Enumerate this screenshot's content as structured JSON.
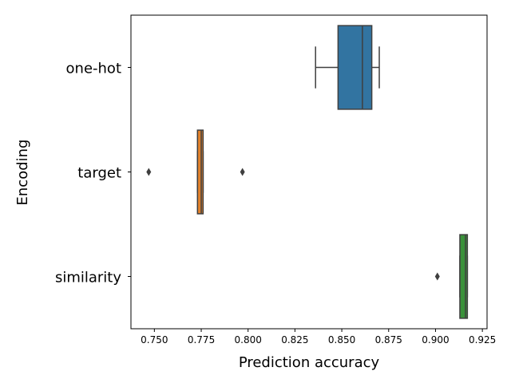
{
  "chart_data": {
    "type": "box",
    "orientation": "horizontal",
    "xlabel": "Prediction accuracy",
    "ylabel": "Encoding",
    "xlim": [
      0.7375,
      0.9275
    ],
    "xticks": [
      0.75,
      0.775,
      0.8,
      0.825,
      0.85,
      0.875,
      0.9,
      0.925
    ],
    "xtick_labels": [
      "0.750",
      "0.775",
      "0.800",
      "0.825",
      "0.850",
      "0.875",
      "0.900",
      "0.925"
    ],
    "grid": false,
    "categories": [
      "one-hot",
      "target",
      "similarity"
    ],
    "series": [
      {
        "category": "one-hot",
        "color": "#3274a1",
        "min": 0.836,
        "q1": 0.848,
        "median": 0.861,
        "q3": 0.866,
        "max": 0.87,
        "outliers": []
      },
      {
        "category": "target",
        "color": "#e1812c",
        "min": 0.773,
        "q1": 0.773,
        "median": 0.775,
        "q3": 0.776,
        "max": 0.776,
        "outliers": [
          0.747,
          0.797
        ]
      },
      {
        "category": "similarity",
        "color": "#3a923a",
        "min": 0.913,
        "q1": 0.913,
        "median": 0.916,
        "q3": 0.917,
        "max": 0.917,
        "outliers": [
          0.901
        ]
      }
    ]
  }
}
